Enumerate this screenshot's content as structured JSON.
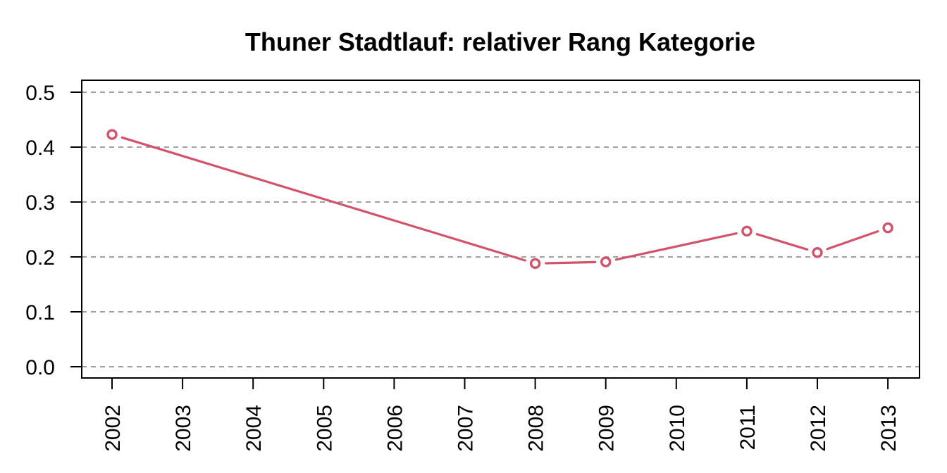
{
  "chart_data": {
    "type": "line",
    "title": "Thuner Stadtlauf: relativer Rang Kategorie",
    "xlabel": "",
    "ylabel": "",
    "categories": [
      "2002",
      "2003",
      "2004",
      "2005",
      "2006",
      "2007",
      "2008",
      "2009",
      "2010",
      "2011",
      "2012",
      "2013"
    ],
    "series": [
      {
        "points": [
          {
            "x": "2002",
            "y": 0.423
          },
          {
            "x": "2008",
            "y": 0.188
          },
          {
            "x": "2009",
            "y": 0.191
          },
          {
            "x": "2011",
            "y": 0.247
          },
          {
            "x": "2012",
            "y": 0.208
          },
          {
            "x": "2013",
            "y": 0.253
          }
        ]
      }
    ],
    "ylim": [
      0.0,
      0.5
    ],
    "yticks": [
      "0.0",
      "0.1",
      "0.2",
      "0.3",
      "0.4",
      "0.5"
    ],
    "grid": "horizontal dashed",
    "colors": {
      "series": "#D2536A",
      "grid": "#808080",
      "axis": "#000000"
    }
  }
}
